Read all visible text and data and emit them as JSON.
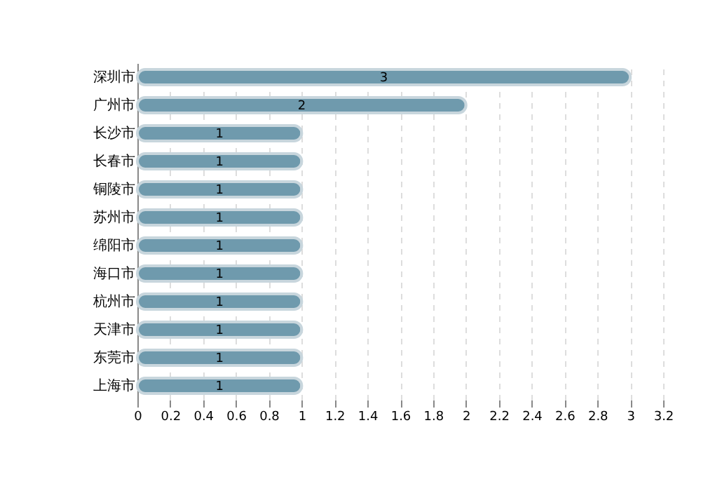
{
  "chart_data": {
    "type": "bar",
    "orientation": "horizontal",
    "categories": [
      "深圳市",
      "广州市",
      "长沙市",
      "长春市",
      "铜陵市",
      "苏州市",
      "绵阳市",
      "海口市",
      "杭州市",
      "天津市",
      "东莞市",
      "上海市"
    ],
    "values": [
      3,
      2,
      1,
      1,
      1,
      1,
      1,
      1,
      1,
      1,
      1,
      1
    ],
    "color": "#6f9aad",
    "xlim": [
      0,
      3.2
    ],
    "xticks": [
      0,
      0.2,
      0.4,
      0.6,
      0.8,
      1,
      1.2,
      1.4,
      1.6,
      1.8,
      2,
      2.2,
      2.4,
      2.6,
      2.8,
      3,
      3.2
    ],
    "grid": "x",
    "data_labels": true
  }
}
